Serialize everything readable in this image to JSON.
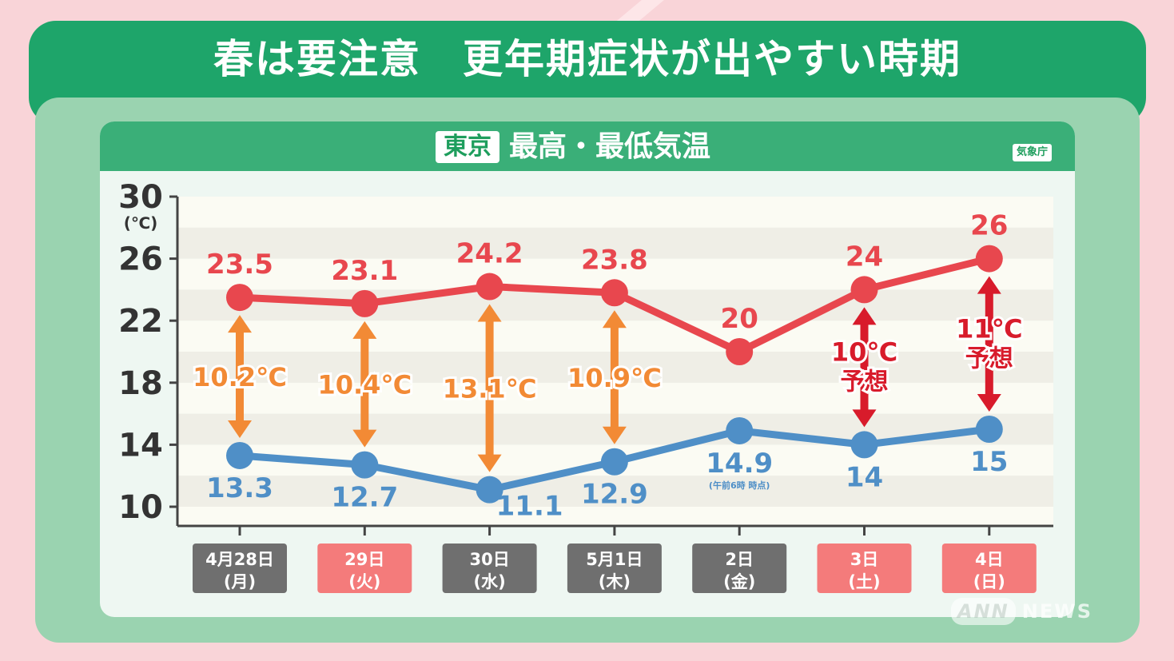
{
  "header": {
    "title": "春は要注意　更年期症状が出やすい時期"
  },
  "panel": {
    "location_badge": "東京",
    "chart_title": "最高・最低気温",
    "source": "気象庁"
  },
  "watermark": {
    "ann": "ANN",
    "news": "NEWS"
  },
  "colors": {
    "high": "#e8474e",
    "low": "#4f8fc7",
    "diff_actual": "#f28a35",
    "diff_forecast": "#d81b2b",
    "weekday_badge": "#6f6f6f",
    "holiday_badge": "#f47b7b"
  },
  "chart_data": {
    "type": "line",
    "title": "最高・最低気温",
    "ylabel": "(℃)",
    "ylim": [
      10,
      30
    ],
    "yticks": [
      "10",
      "14",
      "18",
      "22",
      "26",
      "30"
    ],
    "categories": [
      {
        "date": "4月28日",
        "dow": "(月)",
        "holiday": false
      },
      {
        "date": "29日",
        "dow": "(火)",
        "holiday": true
      },
      {
        "date": "30日",
        "dow": "(水)",
        "holiday": false
      },
      {
        "date": "5月1日",
        "dow": "(木)",
        "holiday": false
      },
      {
        "date": "2日",
        "dow": "(金)",
        "holiday": false
      },
      {
        "date": "3日",
        "dow": "(土)",
        "holiday": true
      },
      {
        "date": "4日",
        "dow": "(日)",
        "holiday": true
      }
    ],
    "series": [
      {
        "values": [
          23.5,
          23.1,
          24.2,
          23.8,
          20,
          24,
          26
        ],
        "labels": [
          "23.5",
          "23.1",
          "24.2",
          "23.8",
          "20",
          "24",
          "26"
        ]
      },
      {
        "values": [
          13.3,
          12.7,
          11.1,
          12.9,
          14.9,
          14,
          15
        ],
        "labels": [
          "13.3",
          "12.7",
          "11.1",
          "12.9",
          "14.9",
          "14",
          "15"
        ]
      }
    ],
    "low_notes": [
      "",
      "",
      "",
      "",
      "(午前6時 時点)",
      "",
      ""
    ],
    "differences": [
      {
        "index": 0,
        "label": "10.2℃",
        "sub": "",
        "forecast": false
      },
      {
        "index": 1,
        "label": "10.4℃",
        "sub": "",
        "forecast": false
      },
      {
        "index": 2,
        "label": "13.1℃",
        "sub": "",
        "forecast": false
      },
      {
        "index": 3,
        "label": "10.9℃",
        "sub": "",
        "forecast": false
      },
      {
        "index": 5,
        "label": "10℃",
        "sub": "予想",
        "forecast": true
      },
      {
        "index": 6,
        "label": "11℃",
        "sub": "予想",
        "forecast": true
      }
    ]
  }
}
